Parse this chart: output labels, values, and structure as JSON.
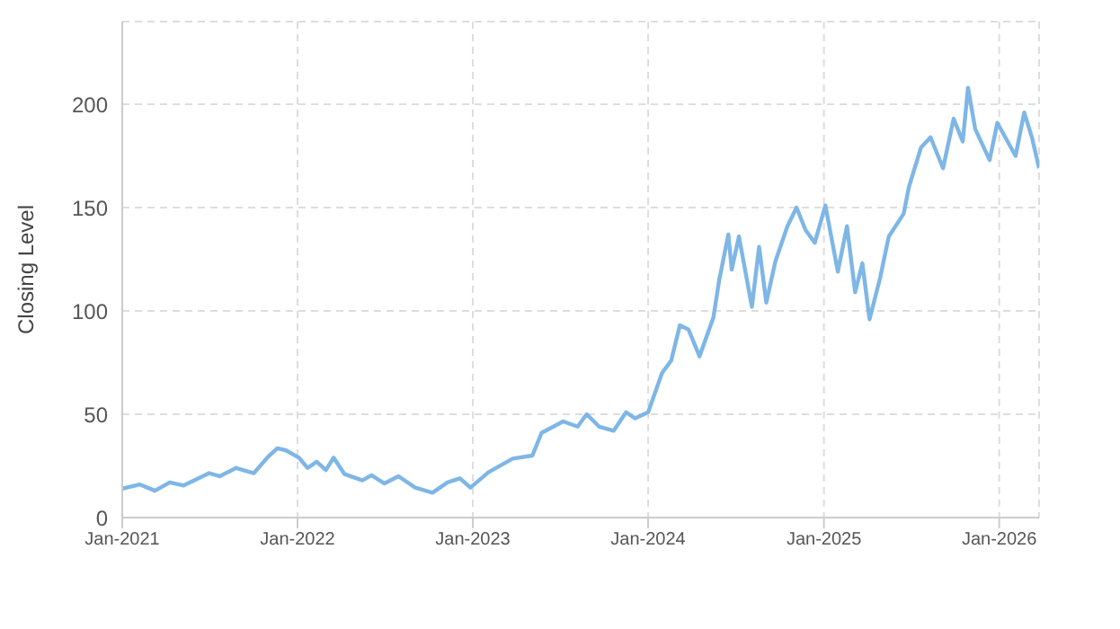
{
  "chart_data": {
    "type": "line",
    "ylabel": "Closing Level",
    "x": [
      "2021-01-01",
      "2021-02-07",
      "2021-03-10",
      "2021-04-10",
      "2021-05-09",
      "2021-07-01",
      "2021-07-23",
      "2021-08-26",
      "2021-10-02",
      "2021-11-01",
      "2021-11-20",
      "2021-12-08",
      "2022-01-04",
      "2022-01-22",
      "2022-02-10",
      "2022-03-01",
      "2022-03-17",
      "2022-04-09",
      "2022-05-16",
      "2022-06-04",
      "2022-07-01",
      "2022-07-30",
      "2022-09-03",
      "2022-10-09",
      "2022-11-09",
      "2022-12-05",
      "2022-12-27",
      "2023-02-03",
      "2023-03-25",
      "2023-05-05",
      "2023-05-24",
      "2023-07-08",
      "2023-08-07",
      "2023-08-26",
      "2023-09-21",
      "2023-10-21",
      "2023-11-16",
      "2023-12-05",
      "2024-01-01",
      "2024-01-30",
      "2024-02-18",
      "2024-03-07",
      "2024-03-25",
      "2024-04-17",
      "2024-05-16",
      "2024-05-28",
      "2024-06-16",
      "2024-06-23",
      "2024-07-08",
      "2024-08-04",
      "2024-08-19",
      "2024-09-03",
      "2024-09-22",
      "2024-10-17",
      "2024-11-05",
      "2024-11-24",
      "2024-12-13",
      "2025-01-04",
      "2025-01-30",
      "2025-02-18",
      "2025-03-07",
      "2025-03-22",
      "2025-04-06",
      "2025-04-28",
      "2025-05-16",
      "2025-06-16",
      "2025-06-27",
      "2025-07-22",
      "2025-08-11",
      "2025-09-06",
      "2025-09-28",
      "2025-10-17",
      "2025-10-28",
      "2025-11-12",
      "2025-12-12",
      "2025-12-28",
      "2026-02-04",
      "2026-02-22",
      "2026-03-10",
      "2026-03-25"
    ],
    "series": [
      {
        "color": "#7eb6e6",
        "values": [
          14,
          16,
          13,
          17,
          15.5,
          21.5,
          20,
          24,
          21.5,
          29.5,
          33.5,
          32.5,
          29,
          24,
          27,
          23,
          29,
          21,
          18,
          20.5,
          16.5,
          20,
          14.5,
          12,
          17,
          19,
          14.5,
          22,
          28.5,
          30,
          41,
          46.5,
          44,
          50,
          44,
          42,
          51,
          48,
          51,
          70,
          76,
          93,
          91,
          78,
          97,
          115,
          137,
          120,
          136,
          102,
          131,
          104,
          124,
          141,
          150,
          139,
          133,
          151,
          119,
          141,
          109,
          123,
          96,
          116,
          136,
          147,
          160,
          179,
          184,
          169,
          193,
          182,
          208,
          188,
          173,
          191,
          175,
          196,
          184,
          169
        ]
      }
    ],
    "xlim": [
      "2021-01-01",
      "2026-03-25"
    ],
    "xticks": [
      {
        "value": "2021-01",
        "label": "Jan-2021"
      },
      {
        "value": "2022-01",
        "label": "Jan-2022"
      },
      {
        "value": "2023-01",
        "label": "Jan-2023"
      },
      {
        "value": "2024-01",
        "label": "Jan-2024"
      },
      {
        "value": "2025-01",
        "label": "Jan-2025"
      },
      {
        "value": "2026-01",
        "label": "Jan-2026"
      }
    ],
    "ylim": [
      0,
      240
    ],
    "yticks": [
      0,
      50,
      100,
      150,
      200
    ],
    "grid": true,
    "legend": false,
    "marker": "none",
    "line_style": "solid"
  }
}
